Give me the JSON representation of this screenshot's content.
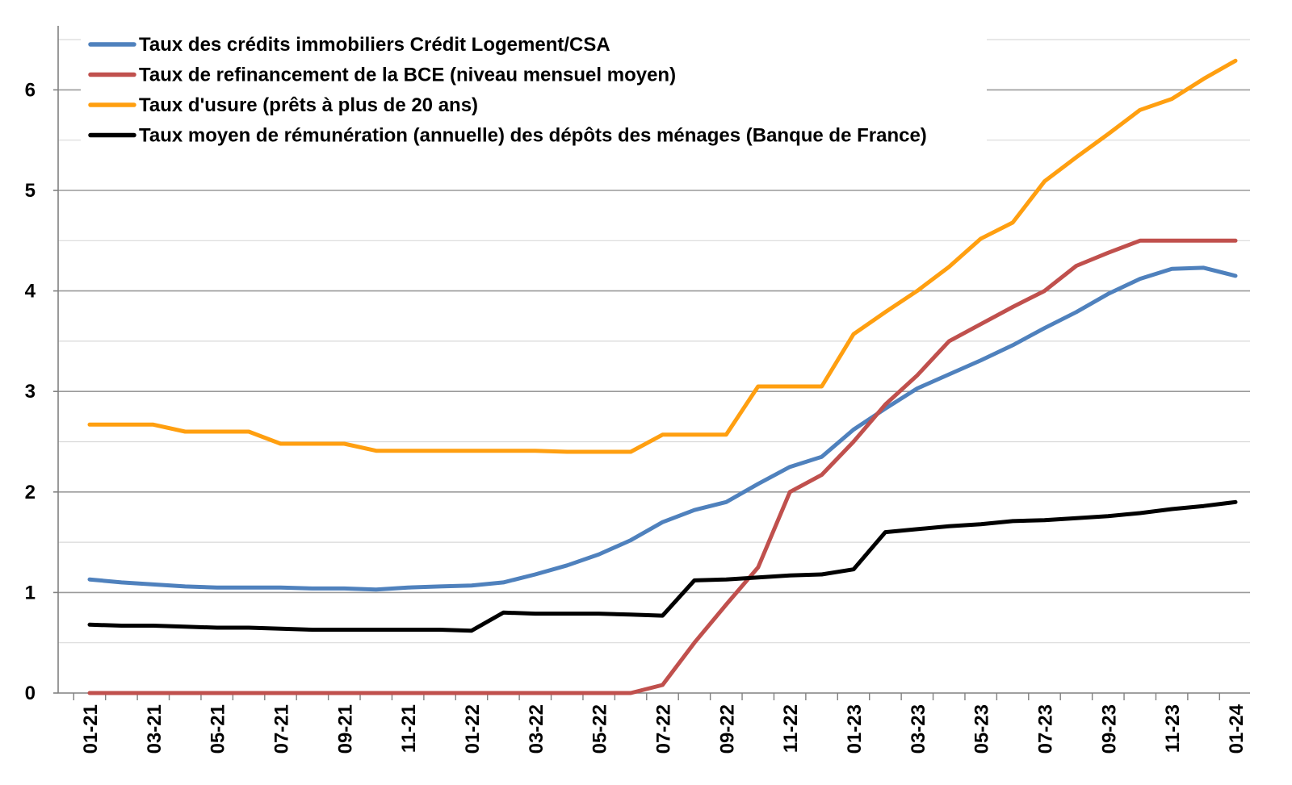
{
  "chart_data": {
    "type": "line",
    "title": "",
    "xlabel": "",
    "ylabel": "",
    "ylim": [
      0,
      6.5
    ],
    "yticks": [
      0,
      1,
      2,
      3,
      4,
      5,
      6
    ],
    "grid": true,
    "legend_position": "top-left",
    "x": [
      "01-21",
      "02-21",
      "03-21",
      "04-21",
      "05-21",
      "06-21",
      "07-21",
      "08-21",
      "09-21",
      "10-21",
      "11-21",
      "12-21",
      "01-22",
      "02-22",
      "03-22",
      "04-22",
      "05-22",
      "06-22",
      "07-22",
      "08-22",
      "09-22",
      "10-22",
      "11-22",
      "12-22",
      "01-23",
      "02-23",
      "03-23",
      "04-23",
      "05-23",
      "06-23",
      "07-23",
      "08-23",
      "09-23",
      "10-23",
      "11-23",
      "12-23",
      "01-24"
    ],
    "xtick_labels": [
      "01-21",
      "03-21",
      "05-21",
      "07-21",
      "09-21",
      "11-21",
      "01-22",
      "03-22",
      "05-22",
      "07-22",
      "09-22",
      "11-22",
      "01-23",
      "03-23",
      "05-23",
      "07-23",
      "09-23",
      "11-23",
      "01-24"
    ],
    "series": [
      {
        "name": "Taux des crédits immobiliers Crédit Logement/CSA",
        "color": "#4F81BD",
        "values": [
          1.13,
          1.1,
          1.08,
          1.06,
          1.05,
          1.05,
          1.05,
          1.04,
          1.04,
          1.03,
          1.05,
          1.06,
          1.07,
          1.1,
          1.18,
          1.27,
          1.38,
          1.52,
          1.7,
          1.82,
          1.9,
          2.08,
          2.25,
          2.35,
          2.62,
          2.83,
          3.03,
          3.17,
          3.31,
          3.46,
          3.63,
          3.79,
          3.97,
          4.12,
          4.22,
          4.23,
          4.15
        ]
      },
      {
        "name": "Taux de refinancement de la BCE (niveau mensuel moyen)",
        "color": "#C0504D",
        "values": [
          0,
          0,
          0,
          0,
          0,
          0,
          0,
          0,
          0,
          0,
          0,
          0,
          0,
          0,
          0,
          0,
          0,
          0,
          0.08,
          0.5,
          0.88,
          1.25,
          2.0,
          2.17,
          2.5,
          2.87,
          3.16,
          3.5,
          3.67,
          3.84,
          4.0,
          4.25,
          4.38,
          4.5,
          4.5,
          4.5,
          4.5
        ]
      },
      {
        "name": "Taux d'usure (prêts à plus de 20 ans)",
        "color": "#FF9F10",
        "values": [
          2.67,
          2.67,
          2.67,
          2.6,
          2.6,
          2.6,
          2.48,
          2.48,
          2.48,
          2.41,
          2.41,
          2.41,
          2.41,
          2.41,
          2.41,
          2.4,
          2.4,
          2.4,
          2.57,
          2.57,
          2.57,
          3.05,
          3.05,
          3.05,
          3.57,
          3.79,
          4.0,
          4.24,
          4.52,
          4.68,
          5.09,
          5.33,
          5.56,
          5.8,
          5.91,
          6.11,
          6.29
        ]
      },
      {
        "name": "Taux moyen de rémunération (annuelle) des dépôts des ménages (Banque de France)",
        "color": "#000000",
        "values": [
          0.68,
          0.67,
          0.67,
          0.66,
          0.65,
          0.65,
          0.64,
          0.63,
          0.63,
          0.63,
          0.63,
          0.63,
          0.62,
          0.8,
          0.79,
          0.79,
          0.79,
          0.78,
          0.77,
          1.12,
          1.13,
          1.15,
          1.17,
          1.18,
          1.23,
          1.6,
          1.63,
          1.66,
          1.68,
          1.71,
          1.72,
          1.74,
          1.76,
          1.79,
          1.83,
          1.86,
          1.9
        ]
      }
    ]
  }
}
